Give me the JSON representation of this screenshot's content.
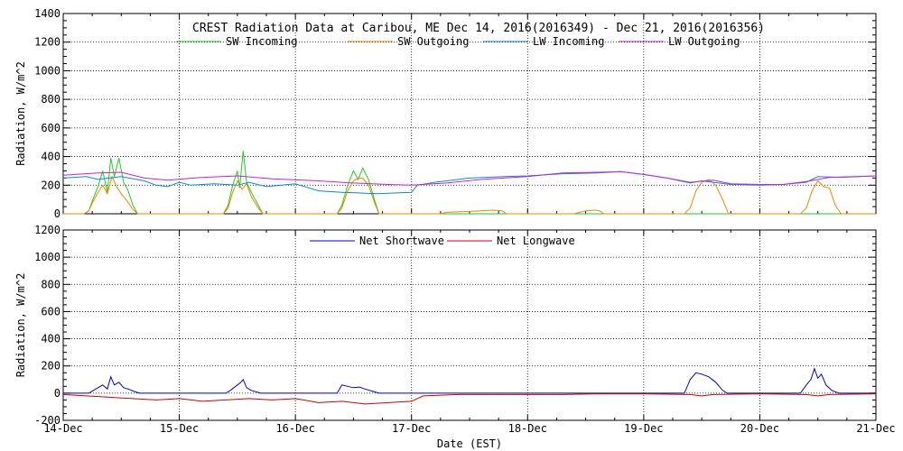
{
  "chart_data": [
    {
      "type": "line",
      "title": "CREST Radiation Data at Caribou, ME   Dec 14, 2016(2016349) - Dec 21, 2016(2016356)",
      "ylabel": "Radiation, W/m^2",
      "xlabel": "",
      "ylim": [
        0,
        1400
      ],
      "yticks": [
        0,
        200,
        400,
        600,
        800,
        1000,
        1200,
        1400
      ],
      "xlim": [
        0,
        7
      ],
      "grid": true,
      "legend_position": "top",
      "series": [
        {
          "name": "SW Incoming",
          "color": "#22cc22",
          "values": [
            [
              0,
              0
            ],
            [
              0.18,
              0
            ],
            [
              0.22,
              20
            ],
            [
              0.26,
              110
            ],
            [
              0.3,
              190
            ],
            [
              0.34,
              300
            ],
            [
              0.38,
              150
            ],
            [
              0.41,
              390
            ],
            [
              0.44,
              260
            ],
            [
              0.48,
              390
            ],
            [
              0.52,
              220
            ],
            [
              0.56,
              160
            ],
            [
              0.6,
              60
            ],
            [
              0.64,
              0
            ],
            [
              1,
              0
            ],
            [
              1.38,
              0
            ],
            [
              1.42,
              60
            ],
            [
              1.46,
              200
            ],
            [
              1.5,
              300
            ],
            [
              1.52,
              180
            ],
            [
              1.55,
              440
            ],
            [
              1.58,
              220
            ],
            [
              1.62,
              150
            ],
            [
              1.68,
              60
            ],
            [
              1.72,
              0
            ],
            [
              2,
              0
            ],
            [
              2.36,
              0
            ],
            [
              2.4,
              60
            ],
            [
              2.45,
              200
            ],
            [
              2.5,
              300
            ],
            [
              2.54,
              240
            ],
            [
              2.58,
              320
            ],
            [
              2.63,
              240
            ],
            [
              2.68,
              100
            ],
            [
              2.72,
              0
            ],
            [
              7,
              0
            ]
          ]
        },
        {
          "name": "SW Outgoing",
          "color": "#ee8800",
          "values": [
            [
              0,
              0
            ],
            [
              0.18,
              0
            ],
            [
              0.22,
              20
            ],
            [
              0.26,
              90
            ],
            [
              0.3,
              150
            ],
            [
              0.34,
              200
            ],
            [
              0.38,
              140
            ],
            [
              0.42,
              260
            ],
            [
              0.46,
              190
            ],
            [
              0.5,
              140
            ],
            [
              0.55,
              90
            ],
            [
              0.6,
              30
            ],
            [
              0.64,
              0
            ],
            [
              1,
              0
            ],
            [
              1.38,
              0
            ],
            [
              1.42,
              40
            ],
            [
              1.46,
              150
            ],
            [
              1.5,
              230
            ],
            [
              1.54,
              170
            ],
            [
              1.58,
              210
            ],
            [
              1.62,
              120
            ],
            [
              1.68,
              40
            ],
            [
              1.72,
              0
            ],
            [
              2,
              0
            ],
            [
              2.36,
              0
            ],
            [
              2.4,
              40
            ],
            [
              2.45,
              160
            ],
            [
              2.5,
              230
            ],
            [
              2.54,
              250
            ],
            [
              2.58,
              250
            ],
            [
              2.63,
              200
            ],
            [
              2.68,
              80
            ],
            [
              2.72,
              0
            ],
            [
              3.25,
              0
            ],
            [
              3.3,
              10
            ],
            [
              3.45,
              15
            ],
            [
              3.6,
              20
            ],
            [
              3.7,
              25
            ],
            [
              3.78,
              20
            ],
            [
              3.82,
              0
            ],
            [
              4.4,
              0
            ],
            [
              4.45,
              10
            ],
            [
              4.5,
              20
            ],
            [
              4.58,
              25
            ],
            [
              4.62,
              20
            ],
            [
              4.66,
              0
            ],
            [
              5.35,
              0
            ],
            [
              5.4,
              40
            ],
            [
              5.45,
              160
            ],
            [
              5.5,
              220
            ],
            [
              5.56,
              240
            ],
            [
              5.62,
              200
            ],
            [
              5.68,
              100
            ],
            [
              5.73,
              0
            ],
            [
              6.35,
              0
            ],
            [
              6.4,
              40
            ],
            [
              6.45,
              160
            ],
            [
              6.5,
              230
            ],
            [
              6.55,
              190
            ],
            [
              6.6,
              180
            ],
            [
              6.65,
              60
            ],
            [
              6.7,
              0
            ],
            [
              7,
              0
            ]
          ]
        },
        {
          "name": "LW Incoming",
          "color": "#1188cc",
          "values": [
            [
              0,
              250
            ],
            [
              0.2,
              260
            ],
            [
              0.3,
              240
            ],
            [
              0.5,
              260
            ],
            [
              0.7,
              230
            ],
            [
              0.8,
              200
            ],
            [
              0.9,
              190
            ],
            [
              1,
              220
            ],
            [
              1.1,
              200
            ],
            [
              1.3,
              210
            ],
            [
              1.5,
              200
            ],
            [
              1.6,
              220
            ],
            [
              1.75,
              190
            ],
            [
              2,
              210
            ],
            [
              2.2,
              160
            ],
            [
              2.4,
              150
            ],
            [
              2.7,
              140
            ],
            [
              3,
              150
            ],
            [
              3.05,
              200
            ],
            [
              3.2,
              220
            ],
            [
              3.5,
              250
            ],
            [
              3.8,
              260
            ],
            [
              4,
              265
            ],
            [
              4.3,
              280
            ],
            [
              4.6,
              285
            ],
            [
              4.8,
              295
            ],
            [
              5,
              275
            ],
            [
              5.2,
              250
            ],
            [
              5.4,
              215
            ],
            [
              5.5,
              230
            ],
            [
              5.6,
              220
            ],
            [
              5.75,
              205
            ],
            [
              6,
              200
            ],
            [
              6.2,
              205
            ],
            [
              6.4,
              220
            ],
            [
              6.5,
              260
            ],
            [
              6.7,
              255
            ],
            [
              7,
              265
            ]
          ]
        },
        {
          "name": "LW Outgoing",
          "color": "#cc22cc",
          "values": [
            [
              0,
              270
            ],
            [
              0.3,
              285
            ],
            [
              0.5,
              290
            ],
            [
              0.7,
              250
            ],
            [
              0.9,
              235
            ],
            [
              1.2,
              255
            ],
            [
              1.5,
              265
            ],
            [
              1.8,
              245
            ],
            [
              2.2,
              230
            ],
            [
              2.5,
              215
            ],
            [
              2.8,
              205
            ],
            [
              3,
              200
            ],
            [
              3.3,
              215
            ],
            [
              3.6,
              240
            ],
            [
              4,
              260
            ],
            [
              4.3,
              285
            ],
            [
              4.6,
              290
            ],
            [
              4.8,
              295
            ],
            [
              5,
              275
            ],
            [
              5.2,
              250
            ],
            [
              5.4,
              220
            ],
            [
              5.6,
              235
            ],
            [
              5.75,
              210
            ],
            [
              6,
              205
            ],
            [
              6.2,
              205
            ],
            [
              6.4,
              225
            ],
            [
              6.6,
              255
            ],
            [
              7,
              265
            ]
          ]
        }
      ]
    },
    {
      "type": "line",
      "title": "",
      "ylabel": "Radiation, W/m^2",
      "xlabel": "Date (EST)",
      "ylim": [
        -200,
        1200
      ],
      "yticks": [
        -200,
        0,
        200,
        400,
        600,
        800,
        1000,
        1200
      ],
      "xlim": [
        0,
        7
      ],
      "xticks": [
        "14-Dec",
        "15-Dec",
        "16-Dec",
        "17-Dec",
        "18-Dec",
        "19-Dec",
        "20-Dec",
        "21-Dec"
      ],
      "grid": true,
      "legend_position": "top",
      "series": [
        {
          "name": "Net Shortwave",
          "color": "#0000cc",
          "values": [
            [
              0,
              0
            ],
            [
              0.22,
              0
            ],
            [
              0.26,
              20
            ],
            [
              0.3,
              40
            ],
            [
              0.34,
              60
            ],
            [
              0.38,
              30
            ],
            [
              0.41,
              120
            ],
            [
              0.44,
              60
            ],
            [
              0.48,
              80
            ],
            [
              0.52,
              40
            ],
            [
              0.56,
              30
            ],
            [
              0.62,
              10
            ],
            [
              0.66,
              0
            ],
            [
              1.4,
              0
            ],
            [
              1.44,
              20
            ],
            [
              1.5,
              60
            ],
            [
              1.53,
              80
            ],
            [
              1.55,
              100
            ],
            [
              1.58,
              40
            ],
            [
              1.62,
              20
            ],
            [
              1.7,
              0
            ],
            [
              2.36,
              0
            ],
            [
              2.4,
              60
            ],
            [
              2.45,
              50
            ],
            [
              2.5,
              40
            ],
            [
              2.55,
              45
            ],
            [
              2.6,
              30
            ],
            [
              2.68,
              10
            ],
            [
              2.72,
              0
            ],
            [
              5.35,
              0
            ],
            [
              5.4,
              100
            ],
            [
              5.45,
              150
            ],
            [
              5.5,
              140
            ],
            [
              5.56,
              120
            ],
            [
              5.62,
              80
            ],
            [
              5.68,
              20
            ],
            [
              5.72,
              0
            ],
            [
              6.35,
              0
            ],
            [
              6.4,
              60
            ],
            [
              6.44,
              100
            ],
            [
              6.47,
              180
            ],
            [
              6.5,
              110
            ],
            [
              6.53,
              140
            ],
            [
              6.57,
              60
            ],
            [
              6.62,
              20
            ],
            [
              6.68,
              0
            ],
            [
              7,
              0
            ]
          ]
        },
        {
          "name": "Net Longwave",
          "color": "#cc0000",
          "values": [
            [
              0,
              -10
            ],
            [
              0.2,
              -20
            ],
            [
              0.4,
              -30
            ],
            [
              0.6,
              -40
            ],
            [
              0.8,
              -50
            ],
            [
              1,
              -40
            ],
            [
              1.2,
              -60
            ],
            [
              1.4,
              -50
            ],
            [
              1.6,
              -40
            ],
            [
              1.8,
              -50
            ],
            [
              2,
              -40
            ],
            [
              2.2,
              -70
            ],
            [
              2.4,
              -60
            ],
            [
              2.6,
              -80
            ],
            [
              2.8,
              -70
            ],
            [
              3,
              -60
            ],
            [
              3.1,
              -20
            ],
            [
              3.4,
              -10
            ],
            [
              3.8,
              -10
            ],
            [
              4.3,
              -10
            ],
            [
              4.6,
              -5
            ],
            [
              5,
              -5
            ],
            [
              5.4,
              -10
            ],
            [
              5.5,
              -20
            ],
            [
              5.6,
              -10
            ],
            [
              6,
              -5
            ],
            [
              6.4,
              -10
            ],
            [
              6.5,
              -20
            ],
            [
              6.6,
              -10
            ],
            [
              7,
              -5
            ]
          ]
        }
      ]
    }
  ]
}
